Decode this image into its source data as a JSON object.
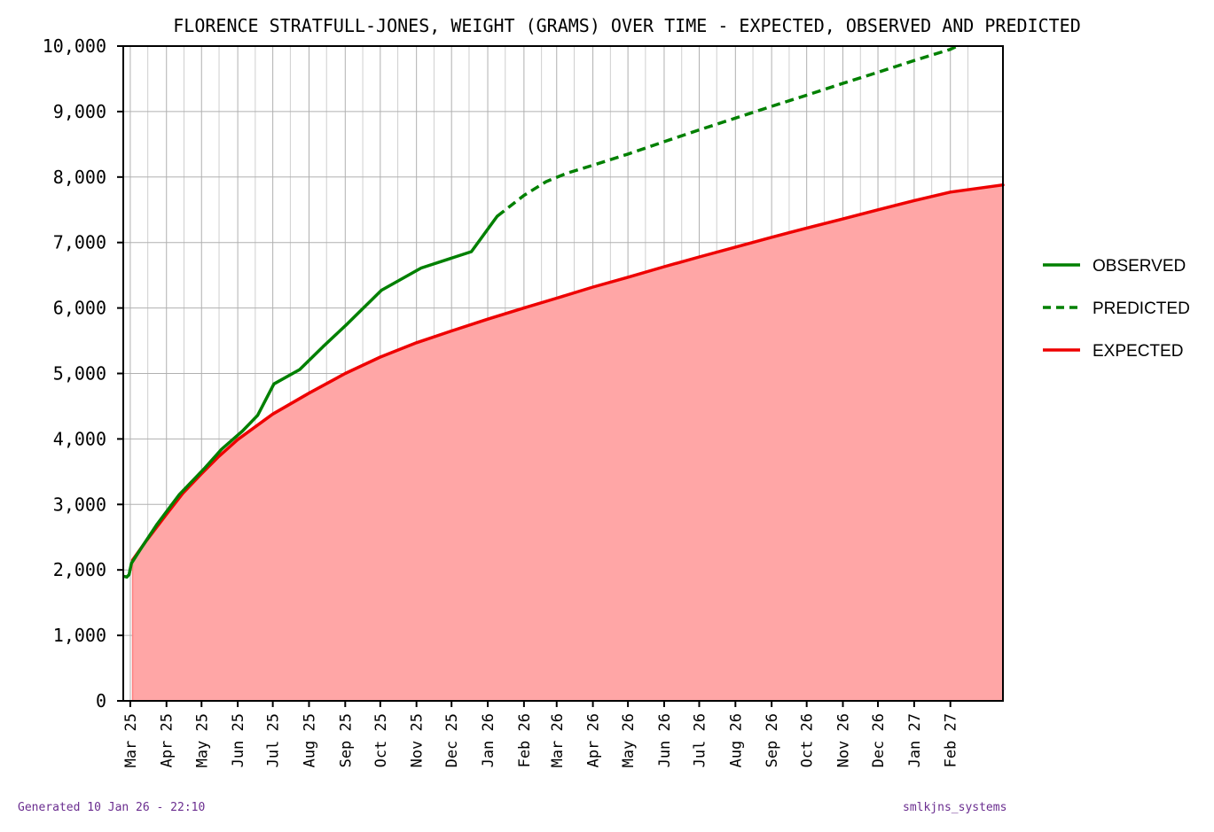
{
  "chart_data": {
    "type": "line",
    "title": "FLORENCE STRATFULL-JONES, WEIGHT (GRAMS) OVER TIME - EXPECTED, OBSERVED AND PREDICTED",
    "xlabel": "",
    "ylabel": "",
    "x_range": [
      "2025-02-23",
      "2027-03-18"
    ],
    "ylim": [
      0,
      10000
    ],
    "y_ticks": [
      0,
      1000,
      2000,
      3000,
      4000,
      5000,
      6000,
      7000,
      8000,
      9000,
      10000
    ],
    "y_tick_labels": [
      "0",
      "1,000",
      "2,000",
      "3,000",
      "4,000",
      "5,000",
      "6,000",
      "7,000",
      "8,000",
      "9,000",
      "10,000"
    ],
    "x_ticks": [
      "2025-03-01",
      "2025-04-01",
      "2025-05-01",
      "2025-06-01",
      "2025-07-01",
      "2025-08-01",
      "2025-09-01",
      "2025-10-01",
      "2025-11-01",
      "2025-12-01",
      "2026-01-01",
      "2026-02-01",
      "2026-03-01",
      "2026-04-01",
      "2026-05-01",
      "2026-06-01",
      "2026-07-01",
      "2026-08-01",
      "2026-09-01",
      "2026-10-01",
      "2026-11-01",
      "2026-12-01",
      "2027-01-01",
      "2027-02-01"
    ],
    "x_tick_labels": [
      "Mar 25",
      "Apr 25",
      "May 25",
      "Jun 25",
      "Jul 25",
      "Aug 25",
      "Sep 25",
      "Oct 25",
      "Nov 25",
      "Dec 25",
      "Jan 26",
      "Feb 26",
      "Mar 26",
      "Apr 26",
      "May 26",
      "Jun 26",
      "Jul 26",
      "Aug 26",
      "Sep 26",
      "Oct 26",
      "Nov 26",
      "Dec 26",
      "Jan 27",
      "Feb 27"
    ],
    "grid": true,
    "legend_position": "right",
    "series": [
      {
        "name": "OBSERVED",
        "color": "#008000",
        "style": "solid",
        "points": [
          [
            "2025-02-24",
            1900
          ],
          [
            "2025-02-26",
            1890
          ],
          [
            "2025-02-28",
            1930
          ],
          [
            "2025-03-02",
            2100
          ],
          [
            "2025-03-11",
            2350
          ],
          [
            "2025-03-24",
            2700
          ],
          [
            "2025-04-12",
            3150
          ],
          [
            "2025-05-04",
            3560
          ],
          [
            "2025-05-18",
            3840
          ],
          [
            "2025-06-05",
            4120
          ],
          [
            "2025-06-18",
            4360
          ],
          [
            "2025-07-02",
            4840
          ],
          [
            "2025-07-24",
            5060
          ],
          [
            "2025-08-13",
            5410
          ],
          [
            "2025-09-03",
            5760
          ],
          [
            "2025-10-02",
            6270
          ],
          [
            "2025-11-05",
            6610
          ],
          [
            "2025-12-18",
            6860
          ],
          [
            "2026-01-09",
            7400
          ]
        ]
      },
      {
        "name": "PREDICTED",
        "color": "#008000",
        "style": "dashed",
        "points": [
          [
            "2026-01-09",
            7400
          ],
          [
            "2026-02-01",
            7720
          ],
          [
            "2026-02-20",
            7930
          ],
          [
            "2026-03-10",
            8060
          ],
          [
            "2026-04-01",
            8180
          ],
          [
            "2026-05-01",
            8350
          ],
          [
            "2026-06-01",
            8540
          ],
          [
            "2026-07-01",
            8720
          ],
          [
            "2026-08-01",
            8900
          ],
          [
            "2026-09-01",
            9080
          ],
          [
            "2026-10-01",
            9250
          ],
          [
            "2026-11-01",
            9430
          ],
          [
            "2026-12-01",
            9600
          ],
          [
            "2027-01-01",
            9780
          ],
          [
            "2027-02-01",
            9950
          ],
          [
            "2027-02-07",
            10000
          ]
        ]
      },
      {
        "name": "EXPECTED",
        "color": "#ee0000",
        "fill": "#ffa6a6",
        "style": "solid",
        "points": [
          [
            "2025-03-03",
            2150
          ],
          [
            "2025-03-15",
            2450
          ],
          [
            "2025-04-01",
            2850
          ],
          [
            "2025-04-15",
            3170
          ],
          [
            "2025-05-01",
            3470
          ],
          [
            "2025-05-15",
            3720
          ],
          [
            "2025-06-01",
            3990
          ],
          [
            "2025-07-01",
            4380
          ],
          [
            "2025-08-01",
            4700
          ],
          [
            "2025-09-01",
            5000
          ],
          [
            "2025-10-01",
            5250
          ],
          [
            "2025-11-01",
            5470
          ],
          [
            "2025-12-01",
            5650
          ],
          [
            "2026-01-01",
            5830
          ],
          [
            "2026-02-01",
            6000
          ],
          [
            "2026-03-01",
            6150
          ],
          [
            "2026-04-01",
            6320
          ],
          [
            "2026-05-01",
            6470
          ],
          [
            "2026-06-01",
            6630
          ],
          [
            "2026-07-01",
            6780
          ],
          [
            "2026-08-01",
            6930
          ],
          [
            "2026-09-01",
            7080
          ],
          [
            "2026-10-01",
            7220
          ],
          [
            "2026-11-01",
            7360
          ],
          [
            "2026-12-01",
            7500
          ],
          [
            "2027-01-01",
            7640
          ],
          [
            "2027-02-01",
            7770
          ],
          [
            "2027-03-18",
            7880
          ]
        ]
      }
    ]
  },
  "footer": {
    "generated": "Generated 10 Jan 26 - 22:10",
    "brand": "smlkjns_systems"
  }
}
